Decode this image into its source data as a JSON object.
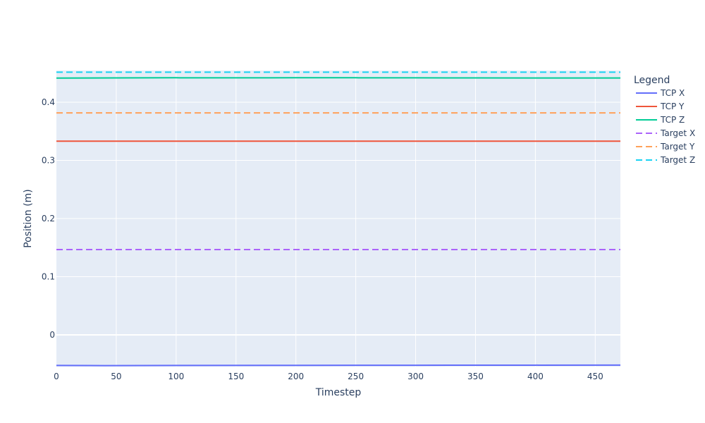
{
  "chart_data": {
    "type": "line",
    "title": "",
    "xlabel": "Timestep",
    "ylabel": "Position (m)",
    "xlim": [
      0,
      471
    ],
    "ylim": [
      -0.0545,
      0.4545
    ],
    "x_ticks": [
      0,
      50,
      100,
      150,
      200,
      250,
      300,
      350,
      400,
      450
    ],
    "y_ticks": [
      0,
      0.1,
      0.2,
      0.3,
      0.4
    ],
    "x_tick_labels": [
      "0",
      "50",
      "100",
      "150",
      "200",
      "250",
      "300",
      "350",
      "400",
      "450"
    ],
    "y_tick_labels": [
      "0",
      "0.1",
      "0.2",
      "0.3",
      "0.4"
    ],
    "grid": true,
    "plot_background": "#e5ecf6",
    "legend": {
      "title": "Legend",
      "placement": "right"
    },
    "series": [
      {
        "name": "TCP X",
        "color": "#636efa",
        "dash": "solid",
        "x": [
          0,
          40,
          100,
          200,
          300,
          400,
          471
        ],
        "y": [
          -0.0525,
          -0.0528,
          -0.0526,
          -0.0524,
          -0.0522,
          -0.052,
          -0.0519
        ]
      },
      {
        "name": "TCP Y",
        "color": "#ef553b",
        "dash": "solid",
        "x": [
          0,
          471
        ],
        "y": [
          0.333,
          0.333
        ]
      },
      {
        "name": "TCP Z",
        "color": "#00cc96",
        "dash": "solid",
        "x": [
          0,
          50,
          100,
          150,
          200,
          250,
          300,
          350,
          400,
          471
        ],
        "y": [
          0.4415,
          0.4418,
          0.442,
          0.4419,
          0.442,
          0.442,
          0.4419,
          0.4418,
          0.4416,
          0.4416
        ]
      },
      {
        "name": "Target X",
        "color": "#ab63fa",
        "dash": "dash",
        "x": [
          0,
          471
        ],
        "y": [
          0.1466,
          0.1466
        ]
      },
      {
        "name": "Target Y",
        "color": "#ffa15a",
        "dash": "dash",
        "x": [
          0,
          471
        ],
        "y": [
          0.3816,
          0.3816
        ]
      },
      {
        "name": "Target Z",
        "color": "#19d3f3",
        "dash": "dash",
        "x": [
          0,
          471
        ],
        "y": [
          0.4516,
          0.4516
        ]
      }
    ]
  }
}
